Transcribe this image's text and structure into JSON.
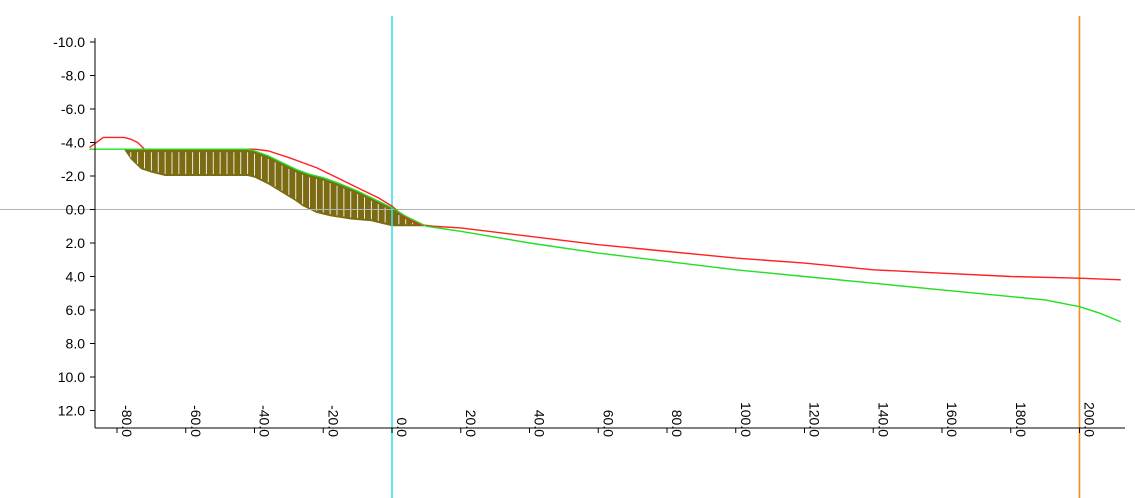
{
  "chart_data": {
    "type": "line",
    "title": "",
    "xlabel": "",
    "ylabel": "",
    "xlim": [
      -88,
      212
    ],
    "ylim": [
      -10.6,
      13.2
    ],
    "y_axis_inverted": true,
    "grid": false,
    "x_ticks": [
      -80,
      -60,
      -40,
      -20,
      0,
      20,
      40,
      60,
      80,
      100,
      120,
      140,
      160,
      180,
      200
    ],
    "x_tick_labels": [
      "-80.0",
      "-60.0",
      "-40.0",
      "-20.0",
      "0.0",
      "20.0",
      "40.0",
      "60.0",
      "80.0",
      "100.0",
      "120.0",
      "140.0",
      "160.0",
      "180.0",
      "200.0"
    ],
    "y_ticks": [
      -10,
      -8,
      -6,
      -4,
      -2,
      0,
      2,
      4,
      6,
      8,
      10,
      12
    ],
    "y_tick_labels": [
      "-10.0",
      "-8.0",
      "-6.0",
      "-4.0",
      "-2.0",
      "0.0",
      "2.0",
      "4.0",
      "6.0",
      "8.0",
      "10.0",
      "12.0"
    ],
    "reference_lines": {
      "horizontal_y": 0,
      "vertical_x": [
        0,
        200
      ],
      "colors": {
        "horizontal": "#b4b4b4",
        "center": "#3ce0ee",
        "right": "#f28d1e"
      }
    },
    "series": [
      {
        "color": "#ff2020",
        "x": [
          -88,
          -84,
          -78,
          -76,
          -74,
          -72,
          -70,
          -50,
          -42,
          -40,
          -36,
          -30,
          -26,
          -22,
          -16,
          -10,
          -4,
          0,
          4,
          8,
          12,
          20,
          40,
          60,
          80,
          100,
          120,
          140,
          160,
          180,
          200,
          212
        ],
        "y": [
          -3.7,
          -4.3,
          -4.3,
          -4.2,
          -4.0,
          -3.6,
          -3.6,
          -3.6,
          -3.6,
          -3.6,
          -3.5,
          -3.1,
          -2.8,
          -2.5,
          -1.9,
          -1.3,
          -0.7,
          -0.2,
          0.5,
          0.9,
          1.0,
          1.1,
          1.6,
          2.1,
          2.5,
          2.9,
          3.2,
          3.6,
          3.8,
          4.0,
          4.1,
          4.2
        ]
      },
      {
        "color": "#20e020",
        "x": [
          -88,
          -80,
          -78,
          -75,
          -72,
          -70,
          -66,
          -60,
          -50,
          -42,
          -40,
          -36,
          -32,
          -28,
          -24,
          -20,
          -16,
          -10,
          -4,
          0,
          4,
          8,
          10,
          20,
          40,
          60,
          80,
          100,
          120,
          140,
          160,
          180,
          190,
          200,
          206,
          212
        ],
        "y": [
          -3.6,
          -3.6,
          -3.6,
          -3.6,
          -3.6,
          -3.6,
          -3.6,
          -3.6,
          -3.6,
          -3.6,
          -3.5,
          -3.2,
          -2.8,
          -2.4,
          -2.1,
          -1.9,
          -1.6,
          -1.1,
          -0.5,
          -0.1,
          0.4,
          0.8,
          1.0,
          1.3,
          2.0,
          2.6,
          3.1,
          3.6,
          4.0,
          4.4,
          4.8,
          5.2,
          5.4,
          5.8,
          6.2,
          6.7
        ]
      }
    ],
    "fill_between": {
      "upper": [
        [
          -78,
          -3.6
        ],
        [
          -50,
          -3.6
        ],
        [
          -42,
          -3.6
        ],
        [
          -40,
          -3.5
        ],
        [
          -36,
          -3.2
        ],
        [
          -32,
          -2.8
        ],
        [
          -28,
          -2.4
        ],
        [
          -24,
          -2.1
        ],
        [
          -20,
          -1.9
        ],
        [
          -16,
          -1.6
        ],
        [
          -10,
          -1.1
        ],
        [
          -4,
          -0.5
        ],
        [
          0,
          -0.1
        ],
        [
          4,
          0.4
        ],
        [
          8,
          0.8
        ],
        [
          10,
          1.0
        ]
      ],
      "lower": [
        [
          -78,
          -3.6
        ],
        [
          -76,
          -3.0
        ],
        [
          -73,
          -2.4
        ],
        [
          -70,
          -2.2
        ],
        [
          -66,
          -2.0
        ],
        [
          -60,
          -2.0
        ],
        [
          -50,
          -2.0
        ],
        [
          -42,
          -2.0
        ],
        [
          -40,
          -1.9
        ],
        [
          -36,
          -1.5
        ],
        [
          -32,
          -1.0
        ],
        [
          -28,
          -0.5
        ],
        [
          -26,
          -0.2
        ],
        [
          -22,
          0.2
        ],
        [
          -18,
          0.4
        ],
        [
          -12,
          0.6
        ],
        [
          -6,
          0.7
        ],
        [
          0,
          1.0
        ],
        [
          4,
          1.0
        ],
        [
          10,
          1.0
        ]
      ],
      "color": "#7b6c13",
      "hatch_color": "#ffffff",
      "hatch_step": 2
    }
  }
}
